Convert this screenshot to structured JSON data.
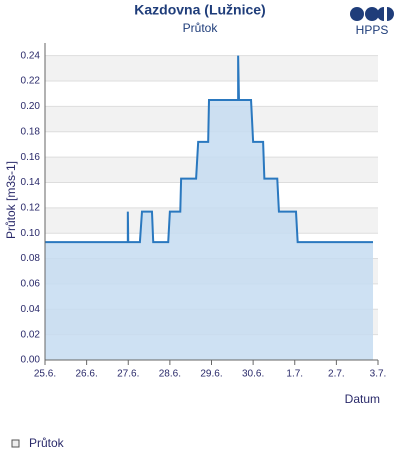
{
  "chart_data": {
    "type": "area",
    "title": "Kazdovna (Lužnice)",
    "subtitle": "Průtok",
    "logo": "HPPS",
    "ylabel": "Průtok [m3s-1]",
    "xlabel": "Datum",
    "xlim": [
      0,
      8
    ],
    "ylim": [
      0,
      0.25
    ],
    "xticks": [
      {
        "value": 0,
        "label": "25.6."
      },
      {
        "value": 1,
        "label": "26.6."
      },
      {
        "value": 2,
        "label": "27.6."
      },
      {
        "value": 3,
        "label": "28.6."
      },
      {
        "value": 4,
        "label": "29.6."
      },
      {
        "value": 5,
        "label": "30.6."
      },
      {
        "value": 6,
        "label": "1.7."
      },
      {
        "value": 7,
        "label": "2.7."
      },
      {
        "value": 8,
        "label": "3.7."
      }
    ],
    "yticks": [
      {
        "value": 0,
        "label": "0.00"
      },
      {
        "value": 0.02,
        "label": "0.02"
      },
      {
        "value": 0.04,
        "label": "0.04"
      },
      {
        "value": 0.06,
        "label": "0.06"
      },
      {
        "value": 0.08,
        "label": "0.08"
      },
      {
        "value": 0.1,
        "label": "0.10"
      },
      {
        "value": 0.12,
        "label": "0.12"
      },
      {
        "value": 0.14,
        "label": "0.14"
      },
      {
        "value": 0.16,
        "label": "0.16"
      },
      {
        "value": 0.18,
        "label": "0.18"
      },
      {
        "value": 0.2,
        "label": "0.20"
      },
      {
        "value": 0.22,
        "label": "0.22"
      },
      {
        "value": 0.24,
        "label": "0.24"
      }
    ],
    "grid": true,
    "x": [
      0,
      1.99,
      1.99,
      2.0,
      2.28,
      2.33,
      2.57,
      2.6,
      2.96,
      3.0,
      3.25,
      3.27,
      3.63,
      3.68,
      3.92,
      3.94,
      4.64,
      4.64,
      4.66,
      4.95,
      5.0,
      5.24,
      5.27,
      5.58,
      5.62,
      6.03,
      6.07,
      7.88
    ],
    "series": [
      {
        "name": "Průtok",
        "color": "#2a78bf",
        "fill": "#c6dcf1",
        "values": [
          0.093,
          0.093,
          0.117,
          0.093,
          0.093,
          0.117,
          0.117,
          0.093,
          0.093,
          0.117,
          0.117,
          0.143,
          0.143,
          0.172,
          0.172,
          0.205,
          0.205,
          0.24,
          0.205,
          0.205,
          0.172,
          0.172,
          0.143,
          0.143,
          0.117,
          0.117,
          0.093,
          0.093
        ]
      }
    ]
  }
}
